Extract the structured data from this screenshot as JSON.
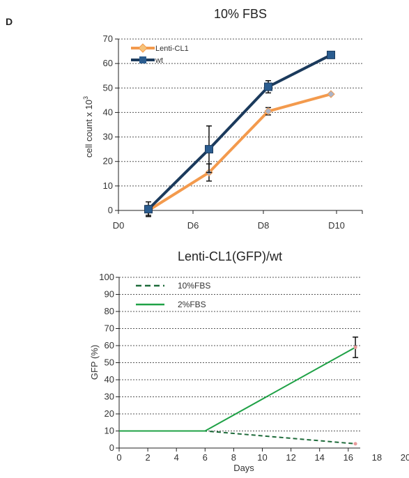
{
  "panel_letter": "D",
  "chart_data": [
    {
      "type": "line",
      "title": "10% FBS",
      "xlabel": "",
      "ylabel": "cell count x 10",
      "ylabel_superscript": "3",
      "categories": [
        "D0",
        "D6",
        "D8",
        "D10"
      ],
      "ylim": [
        0,
        70
      ],
      "yticks": [
        0,
        10,
        20,
        30,
        40,
        50,
        60,
        70
      ],
      "grid": true,
      "legend_position": "top-left",
      "series": [
        {
          "name": "Lenti-CL1",
          "color": "#f39a4d",
          "marker": "diamond",
          "x": [
            "D0",
            "D6",
            "D8",
            "D10"
          ],
          "values": [
            0,
            15.5,
            40.5,
            47.5
          ],
          "errors": [
            2,
            3.5,
            1.5,
            0
          ]
        },
        {
          "name": "wt",
          "color": "#1b3a5c",
          "marker": "square",
          "x": [
            "D0",
            "D6",
            "D8",
            "D10"
          ],
          "values": [
            0.5,
            25,
            50.5,
            63.5
          ],
          "errors": [
            3,
            9.5,
            2.5,
            0
          ]
        }
      ]
    },
    {
      "type": "line",
      "title": "Lenti-CL1(GFP)/wt",
      "xlabel": "Days",
      "ylabel": "GFP (%)",
      "xlim": [
        0,
        20
      ],
      "xticks": [
        0,
        2,
        4,
        6,
        8,
        10,
        12,
        14,
        16,
        18,
        20
      ],
      "ylim": [
        0,
        100
      ],
      "yticks": [
        0,
        10,
        20,
        30,
        40,
        50,
        60,
        70,
        80,
        90,
        100
      ],
      "grid": true,
      "legend_position": "top-left",
      "series": [
        {
          "name": "10%FBS",
          "color": "#1e6b3a",
          "style": "dashed",
          "x": [
            0,
            6,
            16.5
          ],
          "values": [
            10,
            10,
            2.5
          ],
          "errors": [
            0,
            0,
            0
          ]
        },
        {
          "name": "2%FBS",
          "color": "#1fa146",
          "style": "solid",
          "x": [
            0,
            6,
            16.5
          ],
          "values": [
            10,
            10,
            59
          ],
          "errors": [
            0,
            0,
            6
          ]
        }
      ]
    }
  ]
}
